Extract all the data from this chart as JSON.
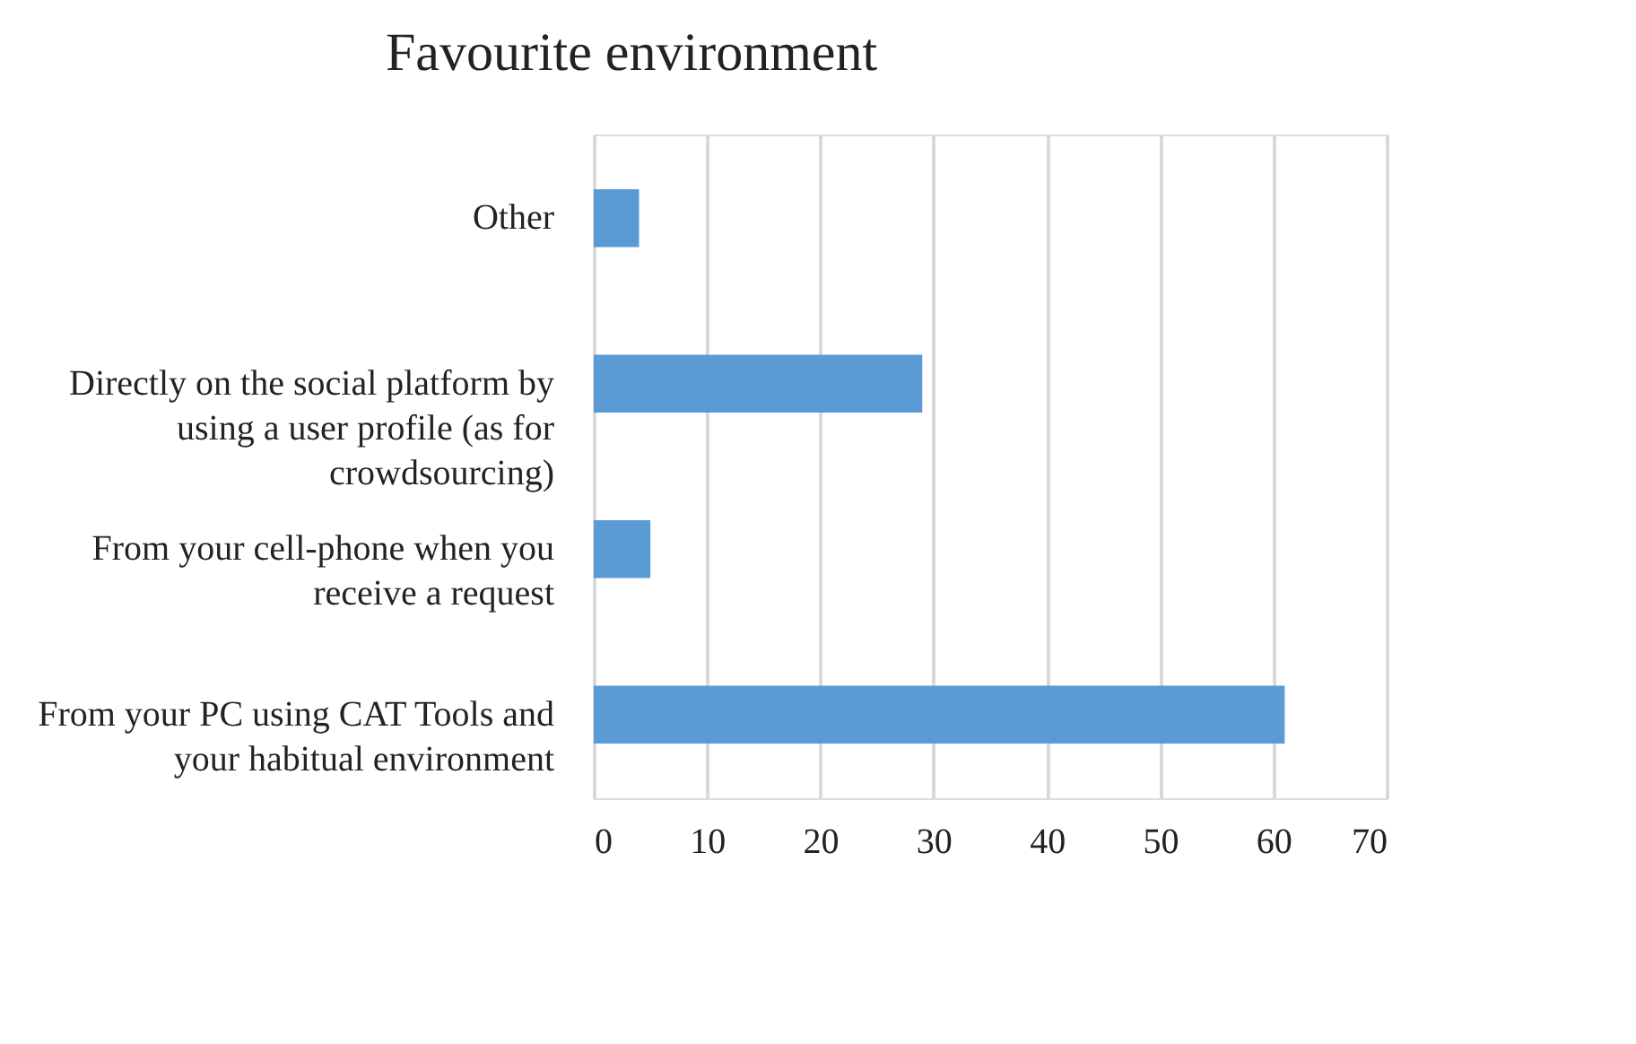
{
  "chart_data": {
    "type": "bar",
    "orientation": "horizontal",
    "title": "Favourite environment",
    "categories": [
      "Other",
      "Directly on the social platform by using a user profile (as for crowdsourcing)",
      "From your cell-phone when you receive a request",
      "From your PC using CAT Tools and your habitual environment"
    ],
    "values": [
      4,
      29,
      5,
      61
    ],
    "color": "#5b9bd5",
    "xlim": [
      0,
      70
    ],
    "xticks": [
      0,
      10,
      20,
      30,
      40,
      50,
      60,
      70
    ],
    "grid": "x"
  }
}
